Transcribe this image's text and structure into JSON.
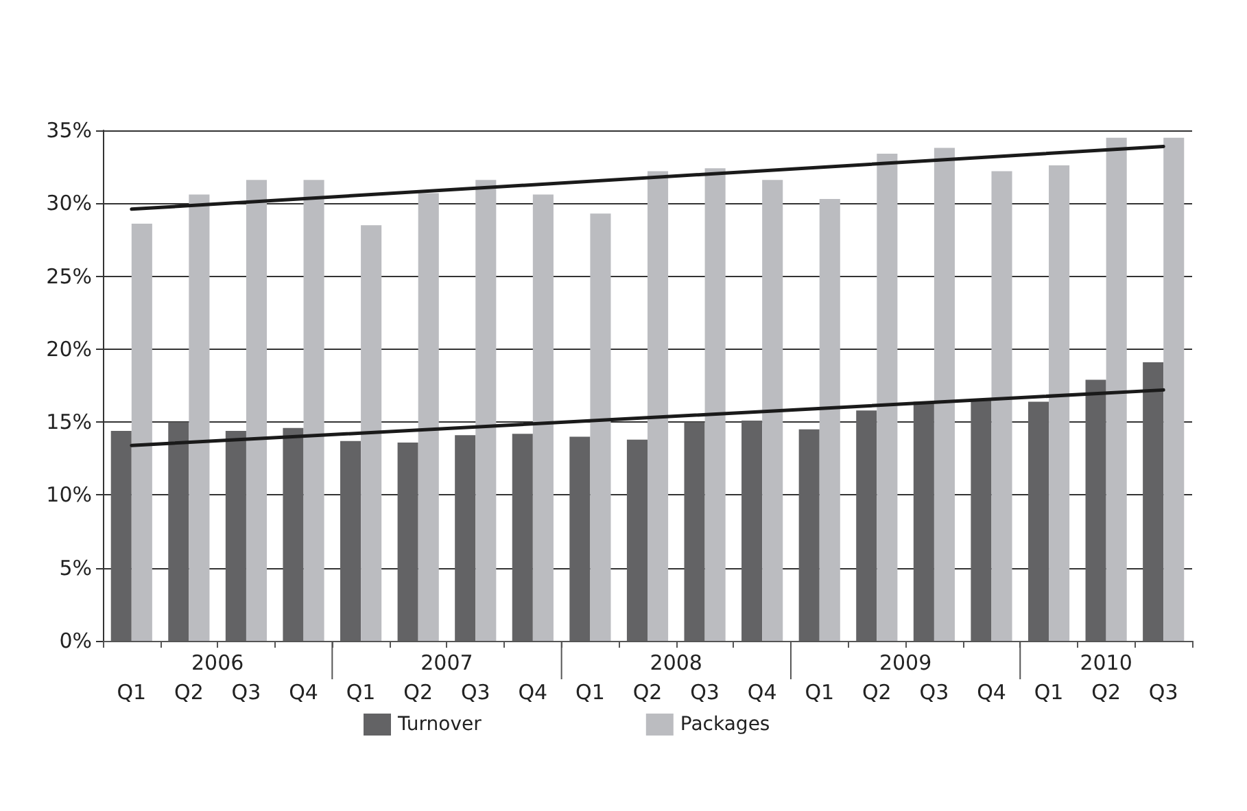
{
  "chart_data": {
    "type": "bar",
    "categories": [
      "Q1",
      "Q2",
      "Q3",
      "Q4",
      "Q1",
      "Q2",
      "Q3",
      "Q4",
      "Q1",
      "Q2",
      "Q3",
      "Q4",
      "Q1",
      "Q2",
      "Q3",
      "Q4",
      "Q1",
      "Q2",
      "Q3"
    ],
    "annotations": [
      "2006",
      "2007",
      "2008",
      "2009",
      "2010"
    ],
    "ylim": [
      0,
      35
    ],
    "yticks": [
      {
        "value": 0,
        "label": "0%"
      },
      {
        "value": 5,
        "label": "5%"
      },
      {
        "value": 10,
        "label": "10%"
      },
      {
        "value": 15,
        "label": "15%"
      },
      {
        "value": 20,
        "label": "20%"
      },
      {
        "value": 25,
        "label": "25%"
      },
      {
        "value": 30,
        "label": "30%"
      },
      {
        "value": 35,
        "label": "35%"
      }
    ],
    "grid": "y",
    "legend": "bottom",
    "series": [
      {
        "name": "Turnover",
        "color": "#636365",
        "values": [
          14.4,
          15.0,
          14.4,
          14.6,
          13.7,
          13.6,
          14.1,
          14.2,
          14.0,
          13.8,
          15.0,
          15.1,
          14.5,
          15.8,
          16.4,
          16.5,
          16.4,
          17.9,
          19.1
        ]
      },
      {
        "name": "Packages",
        "color": "#bbbcc0",
        "values": [
          28.6,
          30.6,
          31.6,
          31.6,
          28.5,
          30.7,
          31.6,
          30.6,
          29.3,
          32.2,
          32.4,
          31.6,
          30.3,
          33.4,
          33.8,
          32.2,
          32.6,
          34.5,
          34.5
        ]
      },
      {
        "type": "line",
        "color": "#1a1a1a",
        "marker": "none",
        "line_style": "solid",
        "values": [
          29.6,
          null,
          null,
          null,
          null,
          null,
          null,
          null,
          null,
          null,
          null,
          null,
          null,
          null,
          null,
          null,
          null,
          null,
          33.9
        ]
      },
      {
        "type": "line",
        "color": "#1a1a1a",
        "marker": "none",
        "line_style": "solid",
        "values": [
          13.4,
          null,
          null,
          null,
          null,
          null,
          null,
          null,
          null,
          null,
          null,
          null,
          null,
          null,
          null,
          null,
          null,
          null,
          17.2
        ]
      }
    ]
  }
}
